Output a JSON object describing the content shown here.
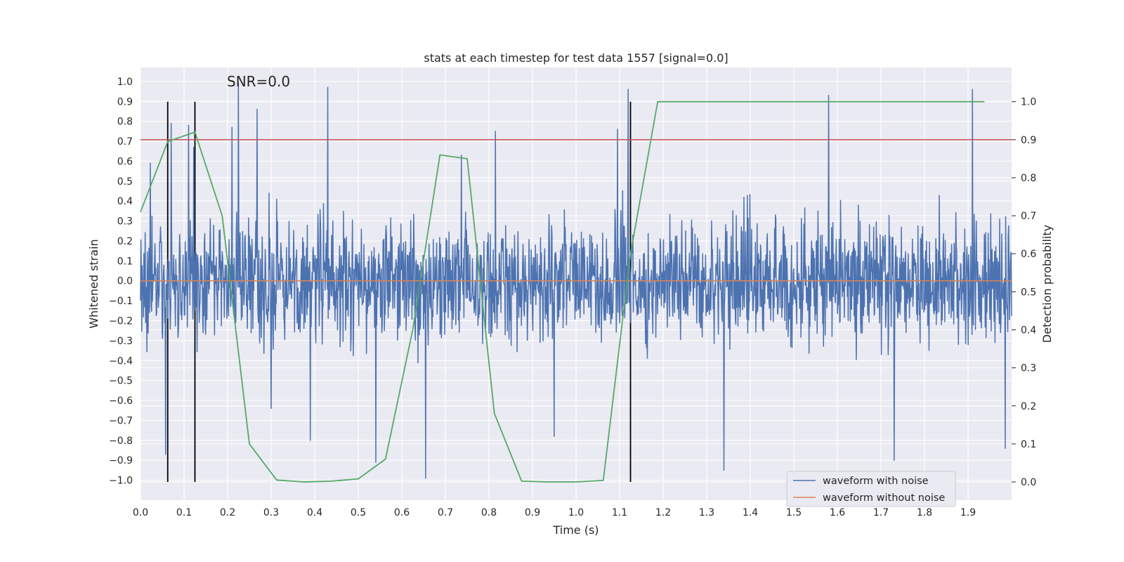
{
  "chart_data": {
    "type": "line",
    "title": "stats at each timestep for test data 1557 [signal=0.0]",
    "annotation": "SNR=0.0",
    "xlabel": "Time (s)",
    "ylabel": "Whitened strain",
    "y2label": "Detection probability",
    "xlim": [
      0.0,
      2.0
    ],
    "ylim": [
      -1.1,
      1.07
    ],
    "y2lim": [
      -0.048,
      1.09
    ],
    "x_ticks": [
      0.0,
      0.1,
      0.2,
      0.3,
      0.4,
      0.5,
      0.6,
      0.7,
      0.8,
      0.9,
      1.0,
      1.1,
      1.2,
      1.3,
      1.4,
      1.5,
      1.6,
      1.7,
      1.8,
      1.9
    ],
    "y_ticks": [
      1.0,
      0.9,
      0.8,
      0.7,
      0.6,
      0.5,
      0.4,
      0.3,
      0.2,
      0.1,
      0.0,
      -0.1,
      -0.2,
      -0.3,
      -0.4,
      -0.5,
      -0.6,
      -0.7,
      -0.8,
      -0.9,
      -1.0
    ],
    "y2_ticks": [
      1.0,
      0.9,
      0.8,
      0.7,
      0.6,
      0.5,
      0.4,
      0.3,
      0.2,
      0.1,
      0.0
    ],
    "grid": true,
    "legend_position": "lower-right",
    "threshold_y2": 0.9,
    "vlines_x": [
      0.0625,
      0.125,
      1.125
    ],
    "series": [
      {
        "name": "waveform with noise",
        "color": "#4c72b0",
        "axis": "left",
        "n_samples": 2048,
        "x_range": [
          0.0,
          2.0
        ],
        "amplitude": 0.32,
        "peaks": [
          [
            0.022,
            0.59
          ],
          [
            0.058,
            -0.87
          ],
          [
            0.07,
            0.79
          ],
          [
            0.11,
            0.78
          ],
          [
            0.122,
            0.67
          ],
          [
            0.21,
            0.77
          ],
          [
            0.225,
            0.99
          ],
          [
            0.268,
            0.86
          ],
          [
            0.3,
            -0.64
          ],
          [
            0.39,
            -0.8
          ],
          [
            0.43,
            0.97
          ],
          [
            0.54,
            -0.91
          ],
          [
            0.655,
            -0.99
          ],
          [
            0.737,
            0.63
          ],
          [
            0.815,
            0.75
          ],
          [
            0.95,
            -0.78
          ],
          [
            1.095,
            0.76
          ],
          [
            1.12,
            0.96
          ],
          [
            1.34,
            -0.95
          ],
          [
            1.58,
            0.93
          ],
          [
            1.73,
            -0.9
          ],
          [
            1.91,
            0.96
          ],
          [
            1.985,
            -0.84
          ]
        ]
      },
      {
        "name": "waveform without noise",
        "color": "#dd8452",
        "axis": "left",
        "x": [
          0.0,
          2.0
        ],
        "y": [
          0.0,
          0.0
        ]
      },
      {
        "name": "detection probability",
        "color": "#55a868",
        "axis": "right",
        "x": [
          0.0,
          0.0625,
          0.125,
          0.1875,
          0.25,
          0.3125,
          0.375,
          0.4375,
          0.5,
          0.5625,
          0.625,
          0.6875,
          0.75,
          0.8125,
          0.875,
          0.9375,
          1.0,
          1.0625,
          1.125,
          1.1875,
          1.25,
          1.3125,
          1.375,
          1.4375,
          1.5,
          1.5625,
          1.625,
          1.6875,
          1.75,
          1.8125,
          1.875,
          1.9375
        ],
        "y": [
          0.71,
          0.895,
          0.92,
          0.7,
          0.1,
          0.005,
          0.0,
          0.002,
          0.008,
          0.06,
          0.4,
          0.86,
          0.85,
          0.18,
          0.002,
          0.0,
          0.0,
          0.004,
          0.6,
          1.0,
          1.0,
          1.0,
          1.0,
          1.0,
          1.0,
          1.0,
          1.0,
          1.0,
          1.0,
          1.0,
          1.0,
          1.0
        ]
      }
    ],
    "legend": [
      "waveform with noise",
      "waveform without noise"
    ],
    "colors": {
      "plot_bg": "#eaeaf2",
      "grid": "#ffffff",
      "threshold": "#c44e52",
      "vline": "#000000",
      "tick_text": "#262626"
    }
  }
}
